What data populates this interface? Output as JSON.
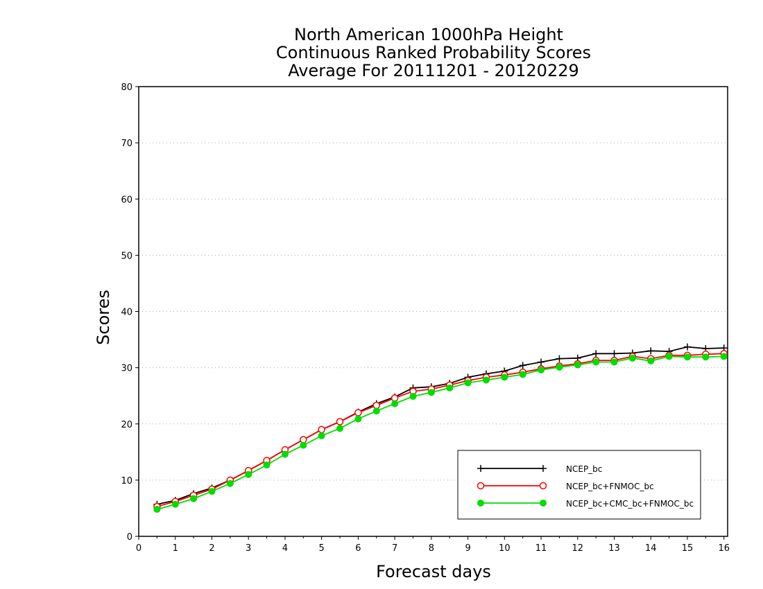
{
  "chart_data": {
    "type": "line",
    "title": [
      "North American 1000hPa Height",
      "Continuous Ranked Probability Scores",
      "Average For 20111201 - 20120229"
    ],
    "xlabel": "Forecast days",
    "ylabel": "Scores",
    "xlim": [
      0,
      16.1
    ],
    "ylim": [
      0,
      80
    ],
    "xticks": [
      0,
      1,
      2,
      3,
      4,
      5,
      6,
      7,
      8,
      9,
      10,
      11,
      12,
      13,
      14,
      15,
      16
    ],
    "yticks": [
      0,
      10,
      20,
      30,
      40,
      50,
      60,
      70,
      80
    ],
    "grid": "horizontal-dotted",
    "legend_position": "bottom-right",
    "x": [
      0.5,
      1,
      1.5,
      2,
      2.5,
      3,
      3.5,
      4,
      4.5,
      5,
      5.5,
      6,
      6.5,
      7,
      7.5,
      8,
      8.5,
      9,
      9.5,
      10,
      10.5,
      11,
      11.5,
      12,
      12.5,
      13,
      13.5,
      14,
      14.5,
      15,
      15.5,
      16
    ],
    "series": [
      {
        "name": "NCEP_bc",
        "color": "#000000",
        "marker": "plus",
        "values": [
          5.7,
          6.4,
          7.6,
          8.6,
          10.0,
          11.7,
          13.5,
          15.4,
          17.2,
          19.0,
          20.4,
          22.1,
          23.6,
          24.8,
          26.4,
          26.6,
          27.2,
          28.3,
          28.9,
          29.4,
          30.4,
          31.0,
          31.6,
          31.7,
          32.5,
          32.5,
          32.6,
          33.0,
          32.9,
          33.7,
          33.4,
          33.5
        ]
      },
      {
        "name": "NCEP_bc+FNMOC_bc",
        "color": "#ff0000",
        "marker": "open-circle",
        "values": [
          5.3,
          6.2,
          7.3,
          8.4,
          10.0,
          11.7,
          13.5,
          15.4,
          17.2,
          19.0,
          20.4,
          22.0,
          23.3,
          24.6,
          25.8,
          26.2,
          26.9,
          27.7,
          28.3,
          28.7,
          29.2,
          29.8,
          30.3,
          30.7,
          31.3,
          31.3,
          32.0,
          31.6,
          32.2,
          32.2,
          32.4,
          32.5
        ]
      },
      {
        "name": "NCEP_bc+CMC_bc+FNMOC_bc",
        "color": "#00dd00",
        "marker": "filled-circle",
        "values": [
          4.8,
          5.7,
          6.7,
          8.0,
          9.4,
          11.0,
          12.7,
          14.6,
          16.2,
          17.9,
          19.2,
          20.9,
          22.3,
          23.6,
          24.9,
          25.6,
          26.4,
          27.3,
          27.8,
          28.3,
          28.8,
          29.6,
          30.1,
          30.5,
          31.0,
          31.0,
          31.7,
          31.2,
          32.0,
          31.9,
          31.9,
          32.0
        ]
      }
    ]
  }
}
